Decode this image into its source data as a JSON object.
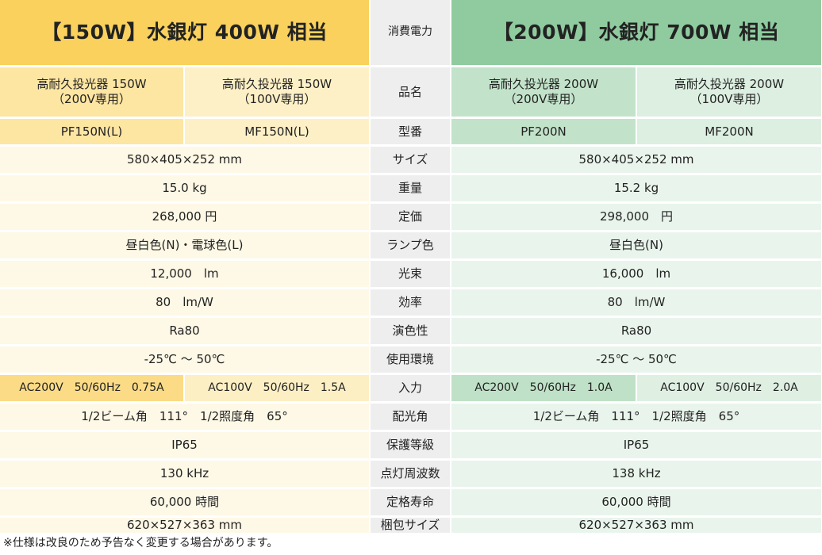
{
  "header": {
    "left": "【150W】水銀灯 400W 相当",
    "label": "消費電力",
    "right": "【200W】水銀灯 700W 相当"
  },
  "names": {
    "label": "品名",
    "a": "高耐久投光器 150W\n（200V専用）",
    "b": "高耐久投光器 150W\n（100V専用）",
    "c": "高耐久投光器 200W\n（200V専用）",
    "d": "高耐久投光器 200W\n（100V専用）"
  },
  "models": {
    "label": "型番",
    "a": "PF150N(L)",
    "b": "MF150N(L)",
    "c": "PF200N",
    "d": "MF200N"
  },
  "rows": [
    {
      "label": "サイズ",
      "left": "580×405×252 mm",
      "right": "580×405×252 mm"
    },
    {
      "label": "重量",
      "left": "15.0 kg",
      "right": "15.2 kg"
    },
    {
      "label": "定価",
      "left": "268,000 円",
      "right": "298,000　円"
    },
    {
      "label": "ランプ色",
      "left": "昼白色(N)・電球色(L)",
      "right": "昼白色(N)"
    },
    {
      "label": "光束",
      "left": "12,000　lm",
      "right": "16,000　lm"
    },
    {
      "label": "効率",
      "left": "80　lm/W",
      "right": "80　lm/W"
    },
    {
      "label": "演色性",
      "left": "Ra80",
      "right": "Ra80"
    },
    {
      "label": "使用環境",
      "left": "-25℃ 〜 50℃",
      "right": "-25℃ 〜 50℃"
    }
  ],
  "input": {
    "label": "入力",
    "a": "AC200V　50/60Hz　0.75A",
    "b": "AC100V　50/60Hz　1.5A",
    "c": "AC200V　50/60Hz　1.0A",
    "d": "AC100V　50/60Hz　2.0A"
  },
  "rows2": [
    {
      "label": "配光角",
      "left": "1/2ビーム角　111°　1/2照度角　65°",
      "right": "1/2ビーム角　111°　1/2照度角　65°"
    },
    {
      "label": "保護等級",
      "left": "IP65",
      "right": "IP65"
    },
    {
      "label": "点灯周波数",
      "left": "130 kHz",
      "right": "138 kHz"
    },
    {
      "label": "定格寿命",
      "left": "60,000 時間",
      "right": "60,000 時間"
    },
    {
      "label": "梱包サイズ",
      "left": "620×527×363 mm",
      "right": "620×527×363 mm"
    }
  ],
  "footnote": "※仕様は改良のため予告なく変更する場合があります。",
  "colors": {
    "yellow_header": "#f9d15c",
    "green_header": "#8fcb9f",
    "label_gray": "#eeeeee"
  }
}
